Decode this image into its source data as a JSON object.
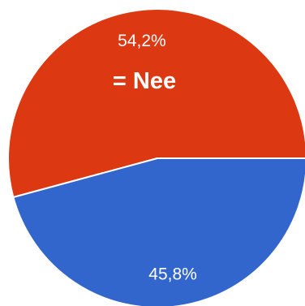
{
  "chart_data": {
    "type": "pie",
    "slices": [
      {
        "label": "54,2%",
        "value": 54.2,
        "color": "#dc3912"
      },
      {
        "label": "45,8%",
        "value": 45.8,
        "color": "#3366cc"
      }
    ],
    "annotations": [
      "= Nee"
    ]
  }
}
